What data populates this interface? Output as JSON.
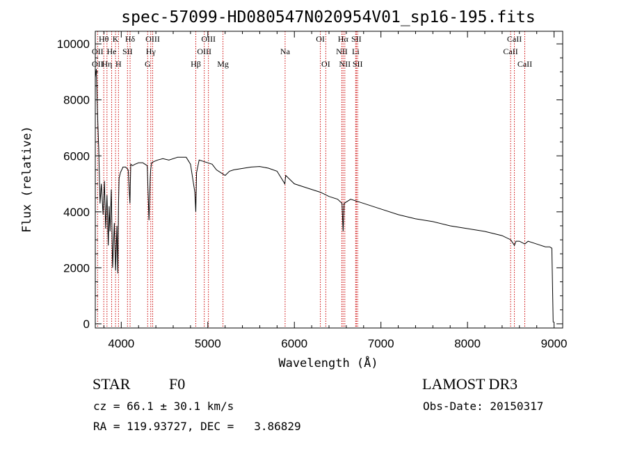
{
  "chart_data": {
    "type": "line",
    "title": "spec-57099-HD080547N020954V01_sp16-195.fits",
    "xlabel": "Wavelength (Å)",
    "ylabel": "Flux (relative)",
    "xlim": [
      3700,
      9100
    ],
    "ylim": [
      -150,
      10450
    ],
    "x_ticks": [
      4000,
      5000,
      6000,
      7000,
      8000,
      9000
    ],
    "y_ticks": [
      0,
      2000,
      4000,
      6000,
      8000,
      10000
    ],
    "series": [
      {
        "name": "flux",
        "x": [
          3700,
          3712,
          3725,
          3740,
          3755,
          3770,
          3790,
          3805,
          3820,
          3835,
          3850,
          3860,
          3870,
          3885,
          3900,
          3920,
          3935,
          3950,
          3960,
          3968,
          3975,
          3990,
          4005,
          4020,
          4050,
          4080,
          4100,
          4110,
          4130,
          4160,
          4200,
          4250,
          4300,
          4320,
          4335,
          4340,
          4350,
          4380,
          4420,
          4480,
          4550,
          4650,
          4750,
          4800,
          4850,
          4861,
          4870,
          4900,
          4950,
          5000,
          5050,
          5100,
          5150,
          5200,
          5250,
          5300,
          5400,
          5500,
          5600,
          5700,
          5800,
          5890,
          5900,
          6000,
          6100,
          6200,
          6300,
          6400,
          6500,
          6550,
          6563,
          6575,
          6650,
          6700,
          6800,
          7000,
          7200,
          7400,
          7600,
          7800,
          8000,
          8200,
          8400,
          8500,
          8542,
          8560,
          8600,
          8662,
          8700,
          8800,
          8900,
          8950,
          8975,
          8990
        ],
        "values": [
          8800,
          9100,
          7600,
          6200,
          4300,
          5000,
          3900,
          5100,
          3400,
          4600,
          2800,
          4200,
          3300,
          4800,
          2000,
          3600,
          1900,
          3500,
          1800,
          4300,
          5200,
          5400,
          5500,
          5600,
          5600,
          5500,
          4300,
          5700,
          5650,
          5700,
          5750,
          5750,
          5650,
          3700,
          5200,
          5500,
          5750,
          5800,
          5850,
          5900,
          5850,
          5950,
          5950,
          5700,
          4700,
          4000,
          5400,
          5850,
          5800,
          5750,
          5700,
          5500,
          5400,
          5300,
          5450,
          5500,
          5550,
          5600,
          5620,
          5560,
          5450,
          5000,
          5300,
          5000,
          4900,
          4800,
          4700,
          4550,
          4450,
          4300,
          3300,
          4300,
          4450,
          4400,
          4300,
          4100,
          3900,
          3750,
          3650,
          3500,
          3400,
          3300,
          3150,
          3000,
          2800,
          2950,
          2950,
          2850,
          2950,
          2850,
          2750,
          2750,
          2700,
          50
        ]
      }
    ],
    "lines": [
      {
        "label": "OII",
        "x": 3727,
        "row": 1
      },
      {
        "label": "OII",
        "x": 3727,
        "row": 2
      },
      {
        "label": "Hθ",
        "x": 3798,
        "row": 0
      },
      {
        "label": "Hη",
        "x": 3835,
        "row": 2
      },
      {
        "label": "He",
        "x": 3889,
        "row": 1
      },
      {
        "label": "K",
        "x": 3934,
        "row": 0
      },
      {
        "label": "H",
        "x": 3968,
        "row": 2
      },
      {
        "label": "SII",
        "x": 4072,
        "row": 1
      },
      {
        "label": "Hδ",
        "x": 4102,
        "row": 0
      },
      {
        "label": "G",
        "x": 4305,
        "row": 2
      },
      {
        "label": "Hγ",
        "x": 4341,
        "row": 1
      },
      {
        "label": "OIII",
        "x": 4363,
        "row": 0
      },
      {
        "label": "Hβ",
        "x": 4861,
        "row": 2
      },
      {
        "label": "OIII",
        "x": 4959,
        "row": 1
      },
      {
        "label": "OIII",
        "x": 5007,
        "row": 0
      },
      {
        "label": "Mg",
        "x": 5175,
        "row": 2
      },
      {
        "label": "Na",
        "x": 5893,
        "row": 1
      },
      {
        "label": "OI",
        "x": 6300,
        "row": 0
      },
      {
        "label": "OI",
        "x": 6363,
        "row": 2
      },
      {
        "label": "NII",
        "x": 6548,
        "row": 1
      },
      {
        "label": "Hα",
        "x": 6563,
        "row": 0
      },
      {
        "label": "NII",
        "x": 6583,
        "row": 2
      },
      {
        "label": "Li",
        "x": 6708,
        "row": 1
      },
      {
        "label": "SII",
        "x": 6716,
        "row": 0
      },
      {
        "label": "SII",
        "x": 6731,
        "row": 2
      },
      {
        "label": "CaII",
        "x": 8498,
        "row": 1
      },
      {
        "label": "CaII",
        "x": 8542,
        "row": 0
      },
      {
        "label": "CaII",
        "x": 8662,
        "row": 2
      }
    ]
  },
  "info": {
    "object_type": "STAR",
    "subclass": "F0",
    "survey": "LAMOST DR3",
    "cz": "cz = 66.1 ± 30.1 km/s",
    "obs_date": "Obs-Date: 20150317",
    "coords": "RA = 119.93727, DEC =   3.86829"
  }
}
